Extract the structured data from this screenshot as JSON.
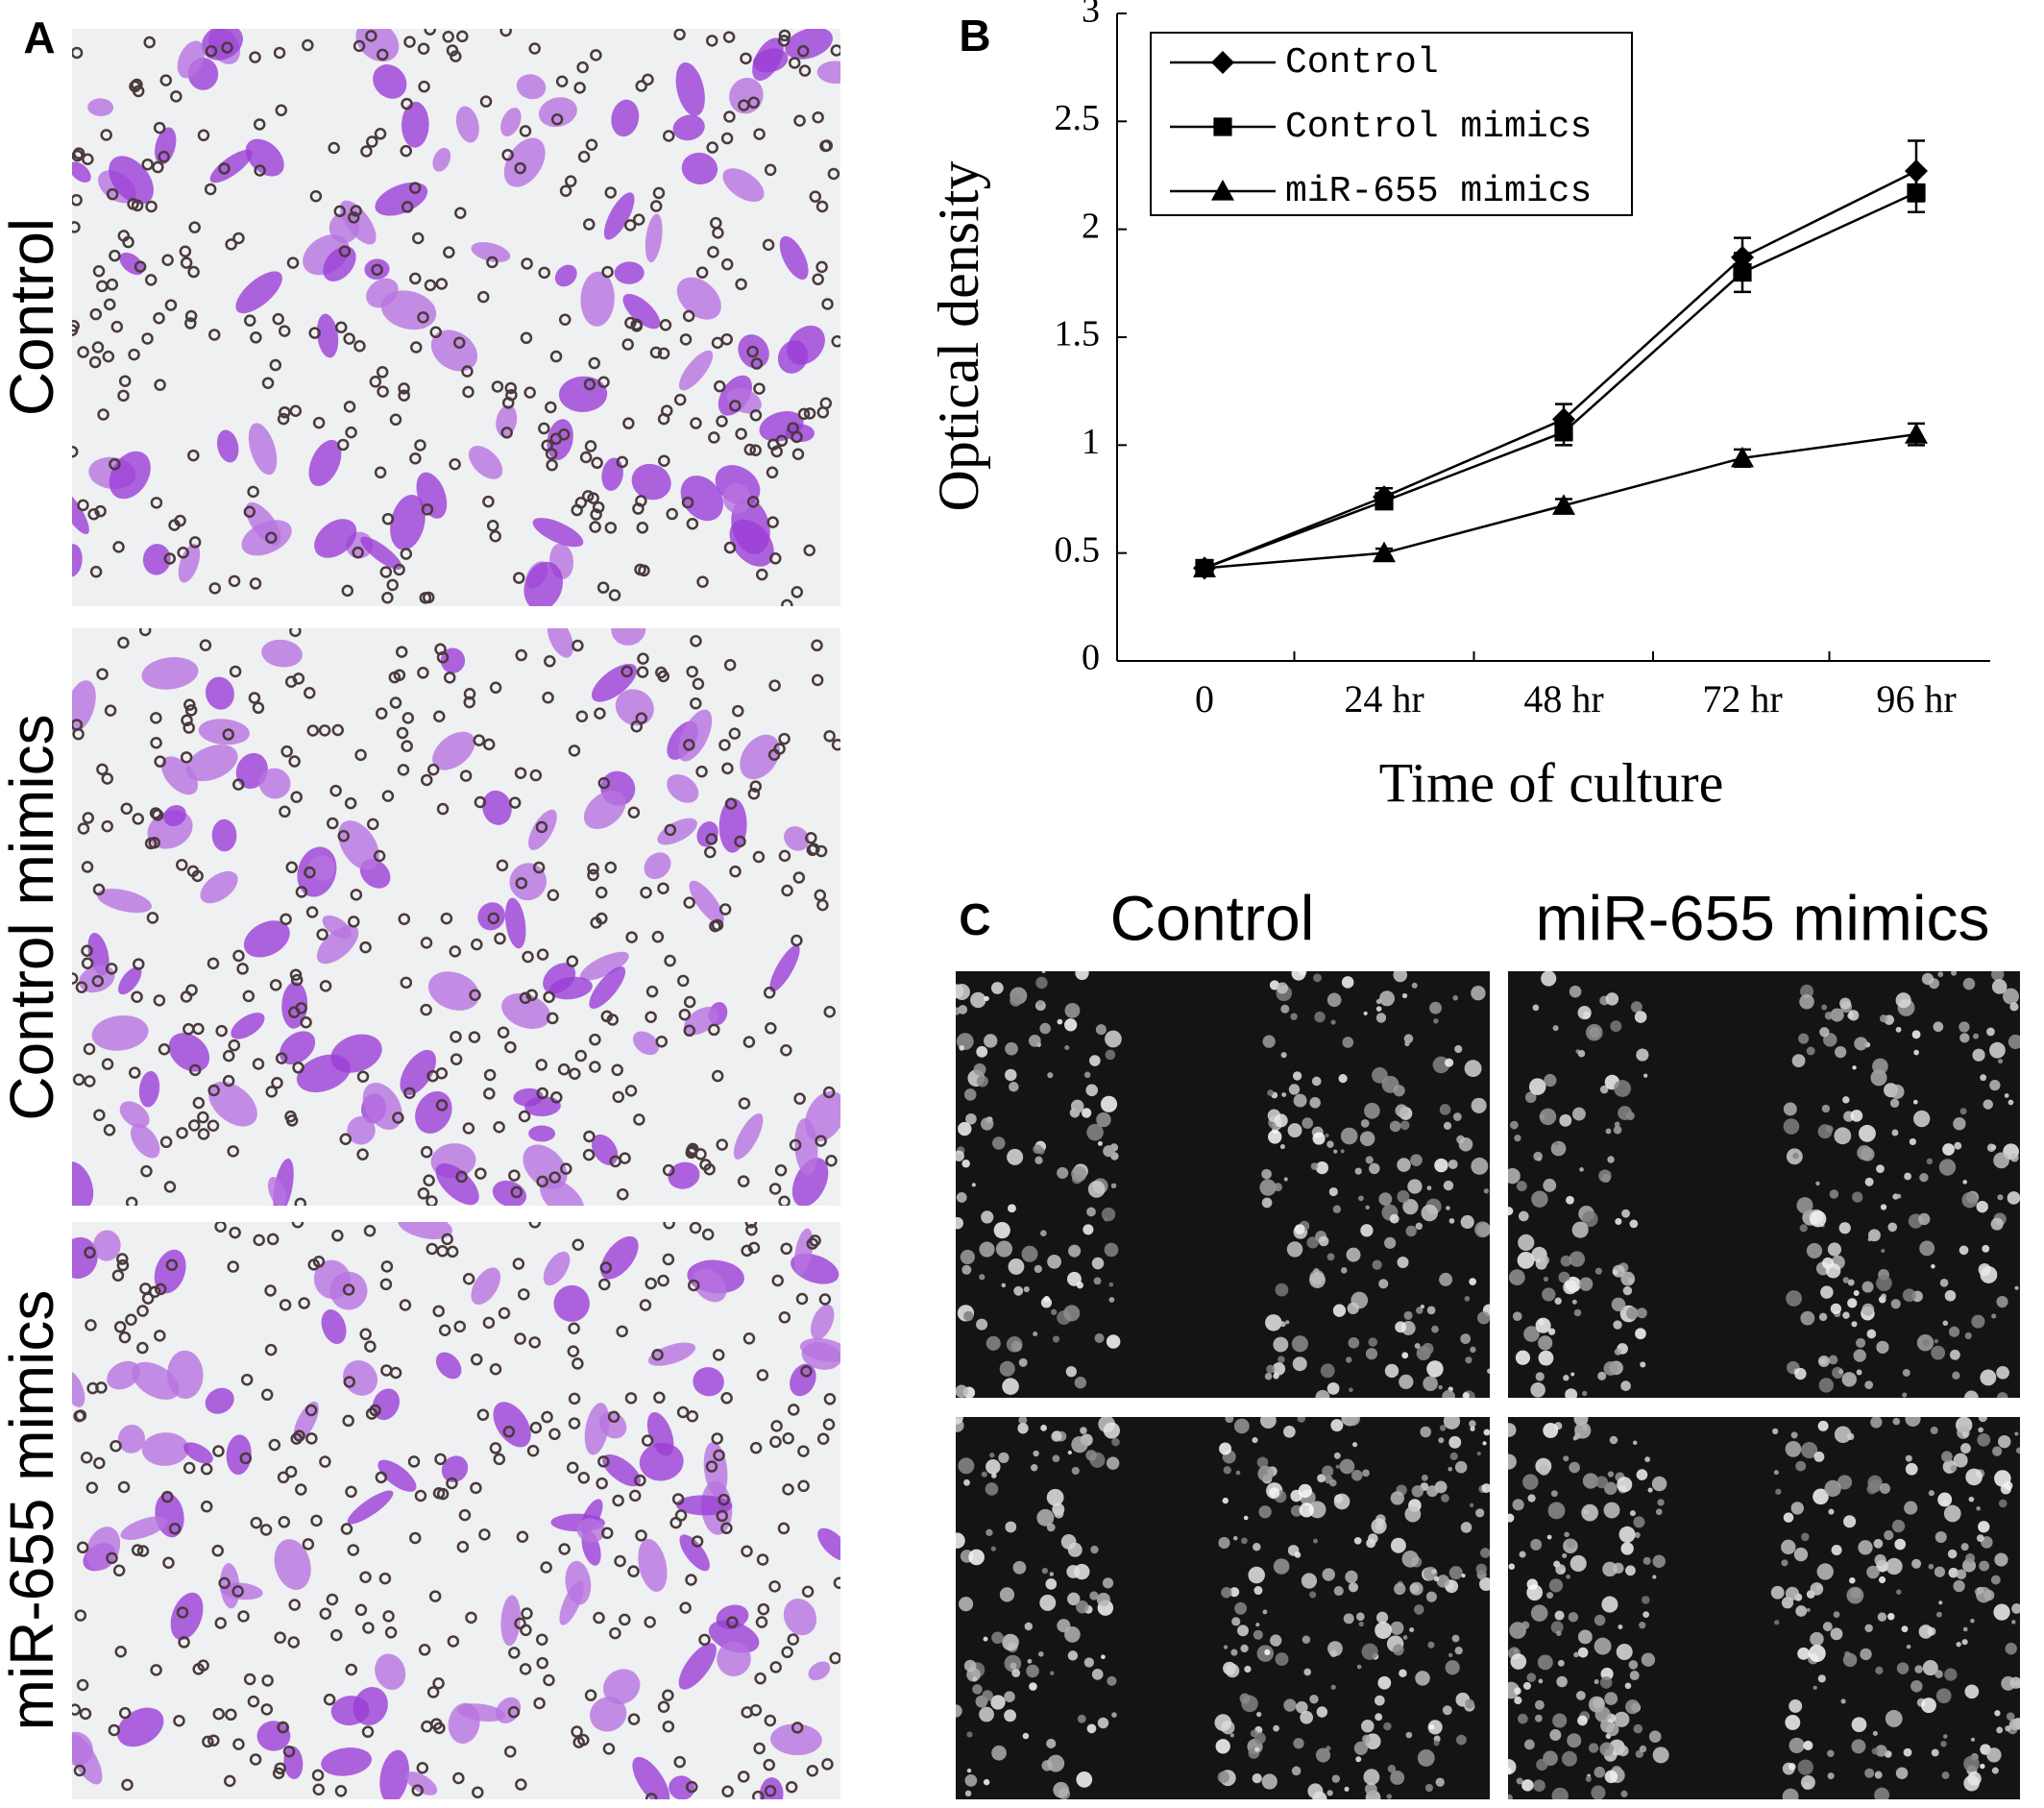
{
  "panel_labels": [
    "A",
    "B",
    "C"
  ],
  "panel_a": {
    "row_labels": [
      "Control",
      "Control mimics",
      "miR-655 mimics"
    ]
  },
  "panel_c": {
    "column_labels": [
      "Control",
      "miR-655 mimics"
    ]
  },
  "chart_data": {
    "type": "line",
    "xlabel": "Time of culture",
    "ylabel": "Optical density",
    "categories": [
      "0",
      "24 hr",
      "48 hr",
      "72 hr",
      "96 hr"
    ],
    "series": [
      {
        "name": "Control",
        "color": "#000000",
        "marker": "diamond",
        "values": [
          0.43,
          0.76,
          1.12,
          1.87,
          2.27
        ],
        "errors": [
          0.03,
          0.04,
          0.07,
          0.09,
          0.14
        ]
      },
      {
        "name": "Control mimics",
        "color": "#000000",
        "marker": "square",
        "values": [
          0.43,
          0.74,
          1.06,
          1.8,
          2.17
        ],
        "errors": [
          0.03,
          0.03,
          0.06,
          0.09,
          0.09
        ]
      },
      {
        "name": "miR-655 mimics",
        "color": "#000000",
        "marker": "triangle",
        "values": [
          0.43,
          0.5,
          0.72,
          0.94,
          1.05
        ],
        "errors": [
          0.02,
          0.02,
          0.03,
          0.04,
          0.05
        ]
      }
    ],
    "ylim": [
      0,
      3
    ],
    "yticks": [
      0,
      0.5,
      1,
      1.5,
      2,
      2.5,
      3
    ],
    "legend": "upper left"
  }
}
